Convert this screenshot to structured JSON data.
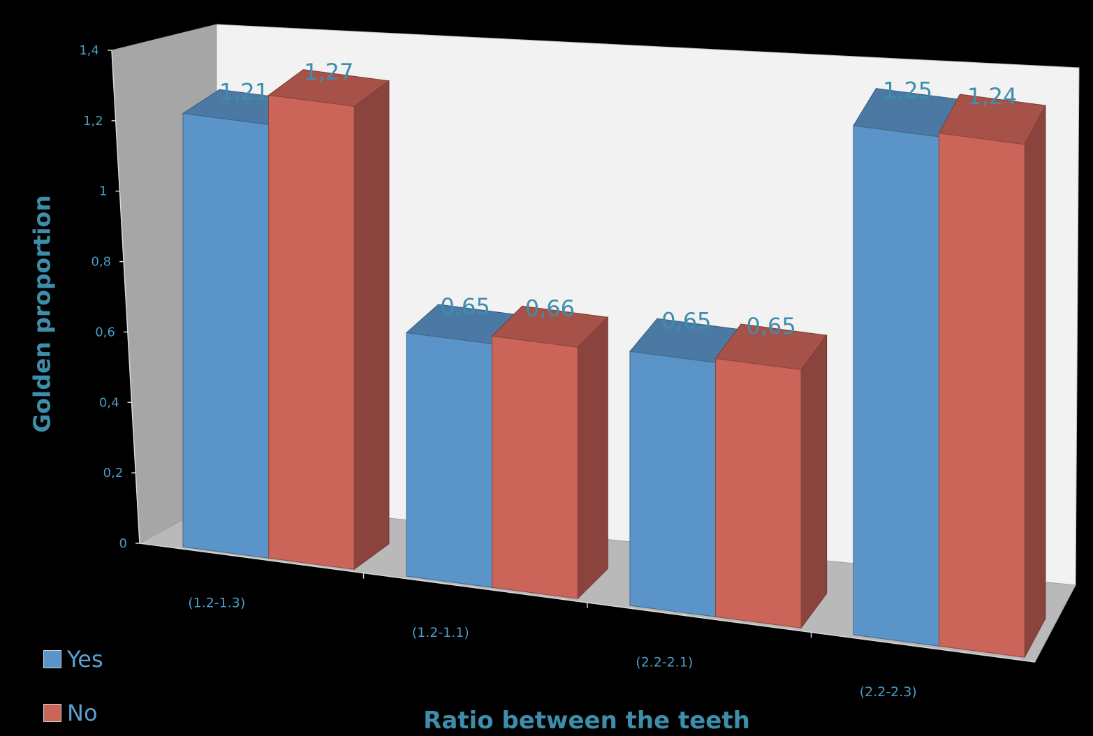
{
  "chart_data": {
    "type": "bar",
    "categories": [
      "(1.2-1.3)",
      "(1.2-1.1)",
      "(2.2-2.1)",
      "(2.2-2.3)"
    ],
    "series": [
      {
        "name": "Yes",
        "values": [
          1.21,
          0.65,
          0.65,
          1.25
        ],
        "labels": [
          "1,21",
          "0,65",
          "0,65",
          "1,25"
        ],
        "color": "#5b94c8"
      },
      {
        "name": "No",
        "values": [
          1.27,
          0.66,
          0.65,
          1.24
        ],
        "labels": [
          "1,27",
          "0,66",
          "0,65",
          "1,24"
        ],
        "color": "#cb6459"
      }
    ],
    "y_ticks": [
      "0",
      "0,2",
      "0,4",
      "0,6",
      "0,8",
      "1",
      "1,2",
      "1,4"
    ],
    "ylim": [
      0,
      1.4
    ],
    "xlabel": "Ratio between the teeth",
    "ylabel": "Golden proportion",
    "style": "3d-clustered-column",
    "legend_position": "bottom-left",
    "grid": false
  }
}
